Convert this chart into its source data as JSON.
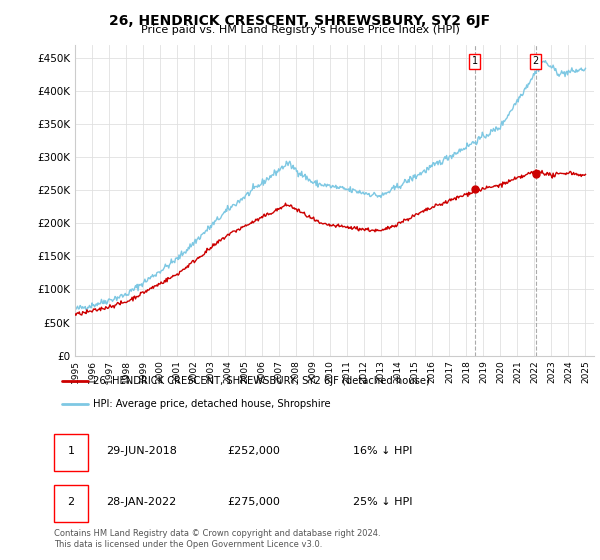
{
  "title": "26, HENDRICK CRESCENT, SHREWSBURY, SY2 6JF",
  "subtitle": "Price paid vs. HM Land Registry's House Price Index (HPI)",
  "ylabel_ticks": [
    "£0",
    "£50K",
    "£100K",
    "£150K",
    "£200K",
    "£250K",
    "£300K",
    "£350K",
    "£400K",
    "£450K"
  ],
  "ytick_values": [
    0,
    50000,
    100000,
    150000,
    200000,
    250000,
    300000,
    350000,
    400000,
    450000
  ],
  "ylim": [
    0,
    470000
  ],
  "xlim_start": 1995.0,
  "xlim_end": 2025.5,
  "hpi_color": "#7ec8e3",
  "price_color": "#cc0000",
  "sale1_date": 2018.49,
  "sale1_price": 252000,
  "sale2_date": 2022.08,
  "sale2_price": 275000,
  "legend_label1": "26, HENDRICK CRESCENT, SHREWSBURY, SY2 6JF (detached house)",
  "legend_label2": "HPI: Average price, detached house, Shropshire",
  "table_row1": [
    "1",
    "29-JUN-2018",
    "£252,000",
    "16% ↓ HPI"
  ],
  "table_row2": [
    "2",
    "28-JAN-2022",
    "£275,000",
    "25% ↓ HPI"
  ],
  "footnote": "Contains HM Land Registry data © Crown copyright and database right 2024.\nThis data is licensed under the Open Government Licence v3.0.",
  "background_color": "#ffffff",
  "grid_color": "#e0e0e0"
}
